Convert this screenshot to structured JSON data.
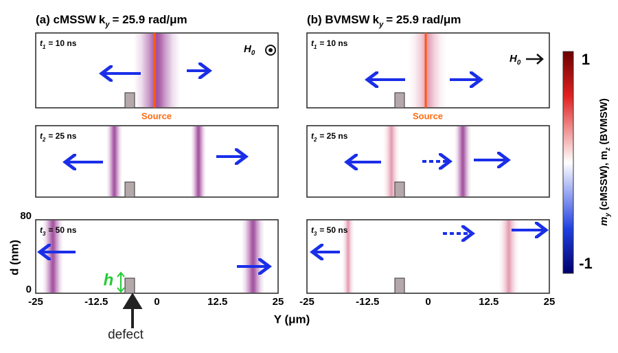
{
  "panels": [
    {
      "title": {
        "prefix": "(a) cMSSW",
        "k": "k",
        "sub": "y",
        "rest": "= 25.9 rad/μm"
      },
      "frames": [
        {
          "t": "t",
          "sub": "1",
          "label": "= 10 ns"
        },
        {
          "t": "t",
          "sub": "2",
          "label": "= 25 ns"
        },
        {
          "t": "t",
          "sub": "3",
          "label": "= 50 ns"
        }
      ],
      "field": {
        "h": "H",
        "sub": "0"
      },
      "source": "Source"
    },
    {
      "title": {
        "prefix": "(b) BVMSW",
        "k": "k",
        "sub": "y",
        "rest": "= 25.9 rad/μm"
      },
      "frames": [
        {
          "t": "t",
          "sub": "1",
          "label": "= 10 ns"
        },
        {
          "t": "t",
          "sub": "2",
          "label": "= 25 ns"
        },
        {
          "t": "t",
          "sub": "3",
          "label": "= 50 ns"
        }
      ],
      "field": {
        "h": "H",
        "sub": "0"
      },
      "source": "Source"
    }
  ],
  "xaxis": {
    "label": "Y (μm)",
    "ticks": [
      "-25",
      "-12.5",
      "0",
      "12.5",
      "25"
    ]
  },
  "yaxis": {
    "label": "d (nm)",
    "ticks": [
      "80",
      "0"
    ]
  },
  "annotations": {
    "h": "h",
    "defect": "defect"
  },
  "colorbar": {
    "ticks": [
      "1",
      "-1"
    ],
    "label": {
      "m1": "m",
      "s1": "y",
      "mid": "(cMSSW),",
      "m2": "m",
      "s2": "z",
      "end": "(BVMSW)"
    }
  }
}
